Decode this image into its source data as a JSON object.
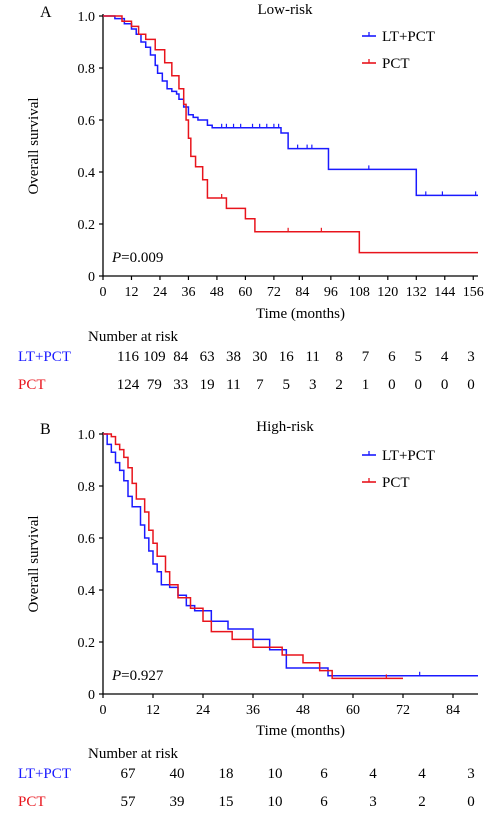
{
  "colors": {
    "lt_pct": "#1a1aff",
    "pct": "#e8141c",
    "axis": "#000000"
  },
  "chart_data": [
    {
      "type": "line",
      "panel_label": "A",
      "title": "Low-risk",
      "xlabel": "Time (months)",
      "ylabel": "Overall survival",
      "xlim": [
        0,
        158
      ],
      "ylim": [
        0,
        1.0
      ],
      "xticks": [
        0,
        12,
        24,
        36,
        48,
        60,
        72,
        84,
        96,
        108,
        120,
        132,
        144,
        156
      ],
      "yticks": [
        0,
        0.2,
        0.4,
        0.6,
        0.8,
        1.0
      ],
      "ytick_labels": [
        "0",
        "0.2",
        "0.4",
        "0.6",
        "0.8",
        "1.0"
      ],
      "grid": false,
      "legend_position": "top-right",
      "p_label": "P",
      "p_value": "=0.009",
      "series": [
        {
          "name": "LT+PCT",
          "color": "#1a1aff",
          "x": [
            0,
            5,
            9,
            12,
            14,
            16,
            18,
            20,
            22,
            23,
            25,
            27,
            29,
            31,
            32,
            34,
            36,
            38,
            40,
            44,
            46,
            50,
            56,
            62,
            70,
            75,
            78,
            95,
            113,
            132,
            158
          ],
          "y": [
            1.0,
            0.99,
            0.97,
            0.95,
            0.93,
            0.9,
            0.88,
            0.85,
            0.81,
            0.78,
            0.75,
            0.72,
            0.71,
            0.7,
            0.68,
            0.65,
            0.62,
            0.61,
            0.6,
            0.58,
            0.57,
            0.57,
            0.57,
            0.57,
            0.57,
            0.55,
            0.49,
            0.41,
            0.41,
            0.31,
            0.31
          ],
          "censors_x": [
            50,
            52,
            55,
            58,
            63,
            66,
            69,
            72,
            74,
            82,
            86,
            88,
            112,
            136,
            143,
            157
          ],
          "censors_y": [
            0.57,
            0.57,
            0.57,
            0.57,
            0.57,
            0.57,
            0.57,
            0.57,
            0.57,
            0.49,
            0.49,
            0.49,
            0.41,
            0.31,
            0.31,
            0.31
          ]
        },
        {
          "name": "PCT",
          "color": "#e8141c",
          "x": [
            0,
            8,
            12,
            15,
            18,
            22,
            26,
            29,
            32,
            34,
            35,
            36,
            37,
            39,
            42,
            44,
            48,
            52,
            60,
            64,
            108,
            158
          ],
          "y": [
            1.0,
            0.98,
            0.96,
            0.93,
            0.91,
            0.87,
            0.82,
            0.77,
            0.72,
            0.66,
            0.6,
            0.53,
            0.46,
            0.42,
            0.37,
            0.3,
            0.3,
            0.26,
            0.22,
            0.17,
            0.09,
            0.09
          ],
          "censors_x": [
            50,
            78,
            92
          ],
          "censors_y": [
            0.3,
            0.17,
            0.17
          ]
        }
      ],
      "risk_table": {
        "heading": "Number at risk",
        "rows": [
          {
            "label": "LT+PCT",
            "color": "#1a1aff",
            "values": [
              "116",
              "109",
              "84",
              "63",
              "38",
              "30",
              "16",
              "11",
              "8",
              "7",
              "6",
              "5",
              "4",
              "3"
            ]
          },
          {
            "label": "PCT",
            "color": "#e8141c",
            "values": [
              "124",
              "79",
              "33",
              "19",
              "11",
              "7",
              "5",
              "3",
              "2",
              "1",
              "0",
              "0",
              "0",
              "0"
            ]
          }
        ]
      }
    },
    {
      "type": "line",
      "panel_label": "B",
      "title": "High-risk",
      "xlabel": "Time (months)",
      "ylabel": "Overall survival",
      "xlim": [
        0,
        90
      ],
      "ylim": [
        0,
        1.0
      ],
      "xticks": [
        0,
        12,
        24,
        36,
        48,
        60,
        72,
        84
      ],
      "yticks": [
        0,
        0.2,
        0.4,
        0.6,
        0.8,
        1.0
      ],
      "ytick_labels": [
        "0",
        "0.2",
        "0.4",
        "0.6",
        "0.8",
        "1.0"
      ],
      "grid": false,
      "legend_position": "top-right",
      "p_label": "P",
      "p_value": "=0.927",
      "series": [
        {
          "name": "LT+PCT",
          "color": "#1a1aff",
          "x": [
            0,
            1,
            2,
            3,
            4,
            5,
            6,
            7,
            9,
            10,
            11,
            12,
            13,
            14,
            16,
            18,
            20,
            22,
            26,
            30,
            36,
            40,
            44,
            54,
            90
          ],
          "y": [
            1.0,
            0.96,
            0.93,
            0.89,
            0.86,
            0.82,
            0.76,
            0.72,
            0.65,
            0.6,
            0.55,
            0.5,
            0.47,
            0.42,
            0.41,
            0.38,
            0.34,
            0.32,
            0.28,
            0.25,
            0.21,
            0.17,
            0.1,
            0.07,
            0.07
          ],
          "censors_x": [
            76
          ],
          "censors_y": [
            0.07
          ]
        },
        {
          "name": "PCT",
          "color": "#e8141c",
          "x": [
            0,
            2,
            3,
            4,
            5,
            6,
            7,
            8,
            10,
            11,
            12,
            13,
            15,
            16,
            18,
            21,
            24,
            26,
            31,
            36,
            43,
            48,
            52,
            55,
            72
          ],
          "y": [
            1.0,
            0.99,
            0.96,
            0.94,
            0.91,
            0.87,
            0.81,
            0.75,
            0.7,
            0.63,
            0.58,
            0.53,
            0.47,
            0.42,
            0.37,
            0.33,
            0.28,
            0.24,
            0.21,
            0.18,
            0.15,
            0.12,
            0.09,
            0.06,
            0.06
          ],
          "censors_x": [
            68
          ],
          "censors_y": [
            0.06
          ]
        }
      ],
      "risk_table": {
        "heading": "Number at risk",
        "rows": [
          {
            "label": "LT+PCT",
            "color": "#1a1aff",
            "values": [
              "67",
              "40",
              "18",
              "10",
              "6",
              "4",
              "4",
              "3"
            ]
          },
          {
            "label": "PCT",
            "color": "#e8141c",
            "values": [
              "57",
              "39",
              "15",
              "10",
              "6",
              "3",
              "2",
              "0"
            ]
          }
        ]
      }
    }
  ]
}
